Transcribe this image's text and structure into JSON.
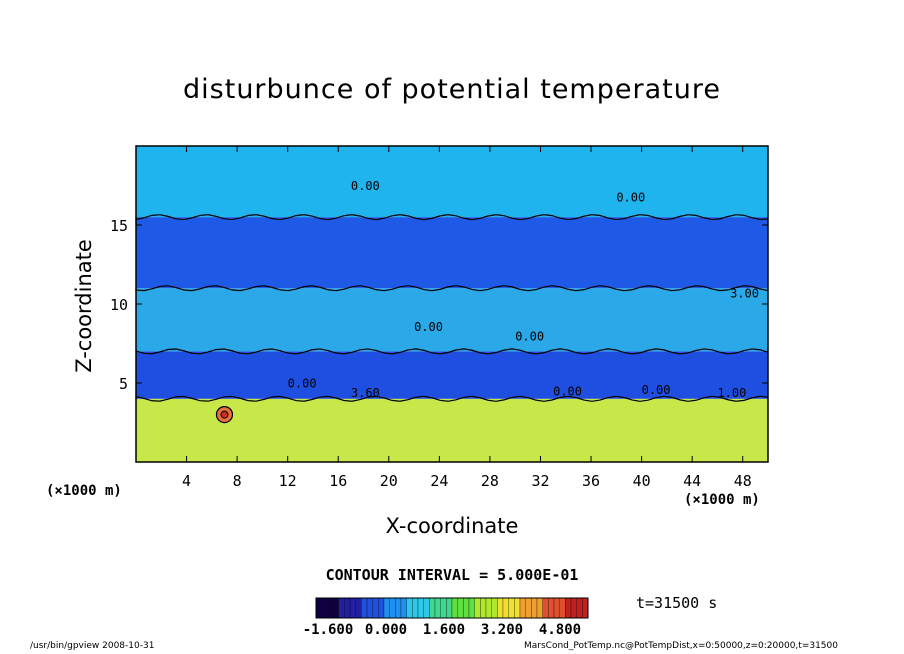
{
  "chart_data": {
    "type": "heatmap",
    "title": "disturbunce of potential temperature",
    "xlabel": "X-coordinate",
    "ylabel": "Z-coordinate",
    "x_unit": "(×1000 m)",
    "y_unit": "(×1000 m)",
    "xlim": [
      0,
      50
    ],
    "ylim": [
      0,
      20
    ],
    "x_ticks": [
      "4",
      "8",
      "12",
      "16",
      "20",
      "24",
      "28",
      "32",
      "36",
      "40",
      "44",
      "48"
    ],
    "y_ticks": [
      "5",
      "10",
      "15"
    ],
    "contour_labels": [
      "0.00",
      "0.00",
      "0.00",
      "0.00",
      "0.00",
      "3.60",
      "0.00",
      "0.00",
      "1.00",
      "3.00"
    ],
    "contour_interval": "CONTOUR INTERVAL = 5.000E-01",
    "colorbar_ticks": [
      "-1.600",
      "0.000",
      "1.600",
      "3.200",
      "4.800"
    ],
    "colorbar_range": [
      -1.6,
      4.8
    ],
    "layers": [
      {
        "z_from": 0,
        "z_to": 4.0,
        "value": 3.2,
        "color": "#c8e84a"
      },
      {
        "z_from": 4.0,
        "z_to": 7.0,
        "value": -1.0,
        "color": "#1f4fe0"
      },
      {
        "z_from": 7.0,
        "z_to": 11.0,
        "value": -0.5,
        "color": "#2aa8e8"
      },
      {
        "z_from": 11.0,
        "z_to": 15.5,
        "value": -1.0,
        "color": "#1f5ae6"
      },
      {
        "z_from": 15.5,
        "z_to": 20.0,
        "value": -0.4,
        "color": "#1fb4ee"
      }
    ],
    "warm_spot": {
      "x": 7.0,
      "z": 3.0,
      "value": 4.5
    }
  },
  "time_label": "t=31500 s",
  "footer_left": "/usr/bin/gpview   2008-10-31",
  "footer_right": "MarsCond_PotTemp.nc@PotTempDist,x=0:50000,z=0:20000,t=31500"
}
